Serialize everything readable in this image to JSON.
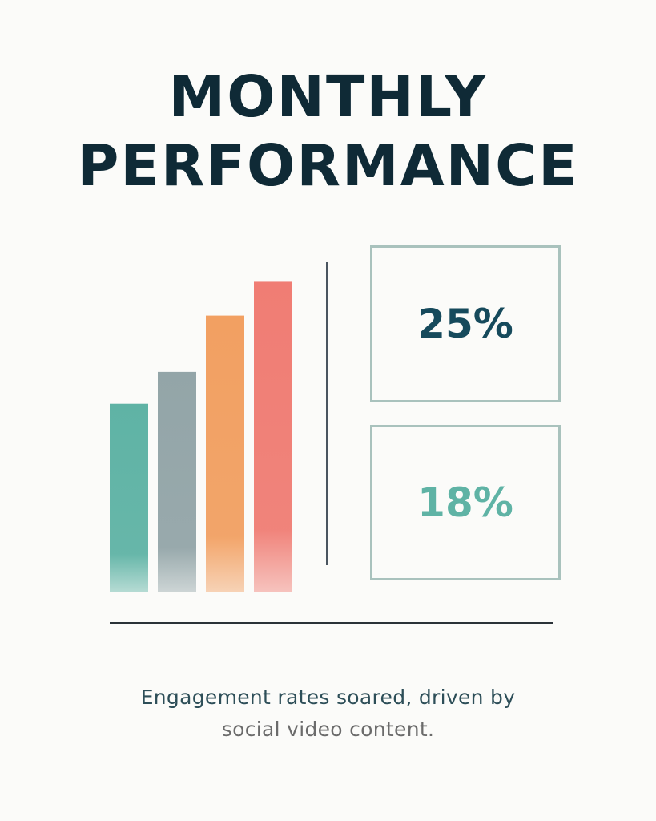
{
  "title": {
    "line1": "MONTHLY",
    "line2": "PERFORMANCE"
  },
  "stats": [
    {
      "value": "25%",
      "color": "#164a5c"
    },
    {
      "value": "18%",
      "color": "#5fb3a5"
    }
  ],
  "caption": {
    "line1": "Engagement rates soared, driven by",
    "line2": "social video content."
  },
  "chart_data": {
    "type": "bar",
    "categories": [
      "",
      "",
      "",
      ""
    ],
    "values": [
      100,
      117,
      147,
      165
    ],
    "ylim": [
      0,
      175
    ],
    "colors": [
      "#5fb3a5",
      "#93a5a8",
      "#f2a062",
      "#f07d74"
    ],
    "grid": false,
    "legend": "none",
    "axes_visible": false
  }
}
